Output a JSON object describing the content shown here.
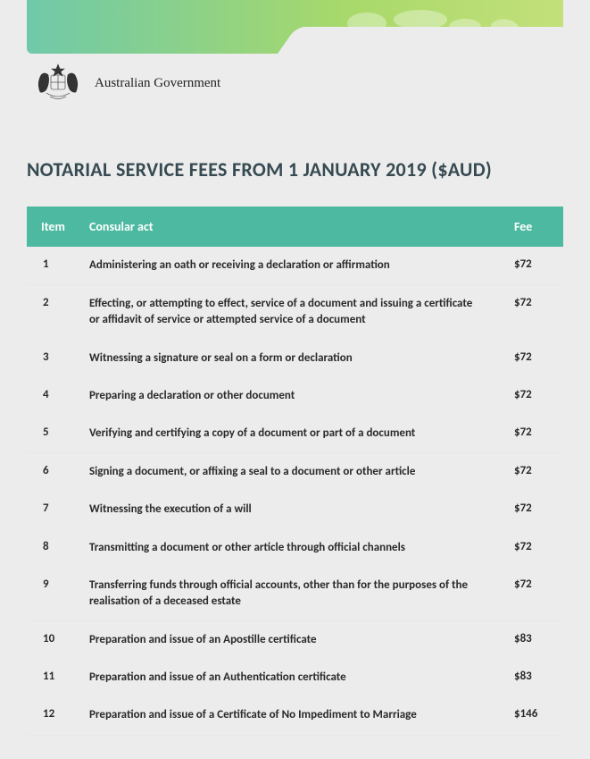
{
  "header": {
    "org": "Australian Government",
    "banner_gradient": [
      "#6fc9a9",
      "#a8d96a",
      "#c3e07a"
    ],
    "banner_map_color": "#ffffff"
  },
  "title": "NOTARIAL SERVICE FEES FROM 1 JANUARY 2019 ($AUD)",
  "table": {
    "header_bg": "#4cb9a0",
    "header_color": "#ffffff",
    "columns": [
      "Item",
      "Consular act",
      "Fee"
    ],
    "rows": [
      {
        "item": "1",
        "desc": "Administering an oath or receiving a declaration or affirmation",
        "fee": "$72",
        "border": true
      },
      {
        "item": "2",
        "desc": "Effecting, or attempting to effect, service of a document and issuing a certificate or affidavit of service or attempted service of a document",
        "fee": "$72",
        "border": false
      },
      {
        "item": "3",
        "desc": "Witnessing a signature or seal on a form or declaration",
        "fee": "$72",
        "border": false
      },
      {
        "item": "4",
        "desc": "Preparing a declaration or other document",
        "fee": "$72",
        "border": false
      },
      {
        "item": "5",
        "desc": "Verifying and certifying a copy of a document or part of a document",
        "fee": "$72",
        "border": true
      },
      {
        "item": "6",
        "desc": "Signing a document, or affixing a seal to a document or other article",
        "fee": "$72",
        "border": false
      },
      {
        "item": "7",
        "desc": "Witnessing the execution of a will",
        "fee": "$72",
        "border": false
      },
      {
        "item": "8",
        "desc": "Transmitting a document or other article through official channels",
        "fee": "$72",
        "border": false
      },
      {
        "item": "9",
        "desc": "Transferring funds through official accounts, other than for the purposes of the realisation of a deceased estate",
        "fee": "$72",
        "border": true
      },
      {
        "item": "10",
        "desc": "Preparation and issue of an Apostille certificate",
        "fee": "$83",
        "border": false
      },
      {
        "item": "11",
        "desc": "Preparation and issue of an Authentication certificate",
        "fee": "$83",
        "border": false
      },
      {
        "item": "12",
        "desc": "Preparation and issue of a Certificate of No Impediment to Marriage",
        "fee": "$146",
        "border": true
      }
    ]
  }
}
